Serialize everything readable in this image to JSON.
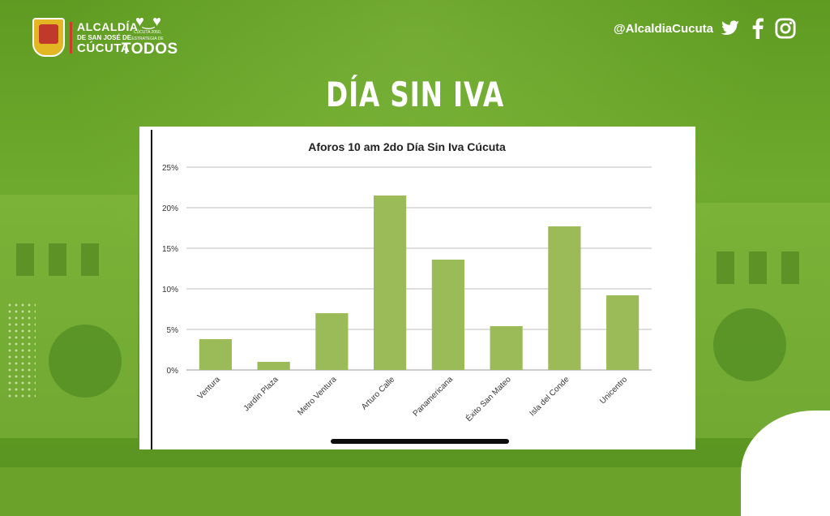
{
  "header": {
    "logo_line1": "ALCALDÍA",
    "logo_line2": "DE SAN JOSÉ DE",
    "logo_line3": "CÚCUTA",
    "todos_tagline": "CÚCUTA 2050, ESTRATEGIA DE",
    "todos_word": "TODOS",
    "handle": "@AlcaldiaCucuta",
    "social_icons": [
      "twitter-icon",
      "facebook-icon",
      "instagram-icon"
    ]
  },
  "page_title": "DÍA SIN IVA",
  "colors": {
    "background": "#6aa22a",
    "bar": "#9bbb59",
    "title_text": "#ffffff"
  },
  "chart_data": {
    "type": "bar",
    "title": "Aforos 10 am 2do Día Sin Iva Cúcuta",
    "categories": [
      "Ventura",
      "Jardín Plaza",
      "Metro Ventura",
      "Arturo Calle",
      "Panamericana",
      "Éxito San Mateo",
      "Isla del Conde",
      "Unicentro"
    ],
    "values": [
      3.8,
      1.0,
      7.0,
      21.5,
      13.6,
      5.4,
      17.7,
      9.2
    ],
    "ylim": [
      0,
      25
    ],
    "yticks": [
      "0%",
      "5%",
      "10%",
      "15%",
      "20%",
      "25%"
    ],
    "ytick_values": [
      0,
      5,
      10,
      15,
      20,
      25
    ],
    "xlabel": "",
    "ylabel": "",
    "grid": true,
    "legend": "none"
  }
}
